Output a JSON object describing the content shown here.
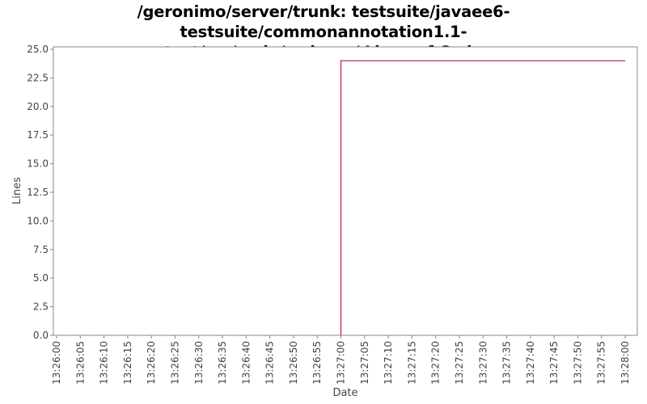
{
  "chart_data": {
    "type": "line",
    "title_lines": [
      "/geronimo/server/trunk: testsuite/javaee6-testsuite/commonannotation1.1-",
      "test/src/main/webapp/ Lines of Code"
    ],
    "xlabel": "Date",
    "ylabel": "Lines",
    "x_tick_labels": [
      "13:26:00",
      "13:26:05",
      "13:26:10",
      "13:26:15",
      "13:26:20",
      "13:26:25",
      "13:26:30",
      "13:26:35",
      "13:26:40",
      "13:26:45",
      "13:26:50",
      "13:26:55",
      "13:27:00",
      "13:27:05",
      "13:27:10",
      "13:27:15",
      "13:27:20",
      "13:27:25",
      "13:27:30",
      "13:27:35",
      "13:27:40",
      "13:27:45",
      "13:27:50",
      "13:27:55",
      "13:28:00"
    ],
    "y_tick_labels": [
      "0.0",
      "2.5",
      "5.0",
      "7.5",
      "10.0",
      "12.5",
      "15.0",
      "17.5",
      "20.0",
      "22.5",
      "25.0"
    ],
    "xlim": [
      "13:26:00",
      "13:28:00"
    ],
    "ylim": [
      0,
      25
    ],
    "series": [
      {
        "color": "#aa2233",
        "step": true,
        "points": [
          {
            "x": "13:27:00",
            "y": 0
          },
          {
            "x": "13:27:00",
            "y": 24
          },
          {
            "x": "13:28:00",
            "y": 24
          }
        ]
      }
    ],
    "grid": false,
    "legend": "none"
  }
}
